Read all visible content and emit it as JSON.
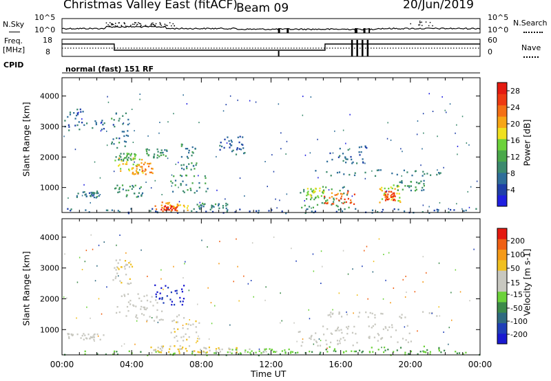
{
  "header": {
    "title": "Christmas Valley East (fitACF)",
    "beam": "Beam 09",
    "date": "20/Jun/2019"
  },
  "top_panels": {
    "nsky_label": "N.Sky",
    "nsky_ticks": [
      "10^5",
      "10^0"
    ],
    "nsearch_label": "N.Search",
    "nsearch_ticks": [
      "10^5",
      "10^0"
    ],
    "freq_label_1": "Freq.",
    "freq_label_2": "[MHz]",
    "freq_ticks": [
      "18",
      "8"
    ],
    "nave_label": "Nave",
    "nave_ticks": [
      "60",
      "0"
    ],
    "cpid_label": "CPID",
    "cpid_value": "normal (fast) 151 RF"
  },
  "colors": {
    "power_scale": [
      "#1f1fe0",
      "#1f3fa8",
      "#2f6e9a",
      "#3c8a6e",
      "#4aa84a",
      "#6cd23a",
      "#f0e020",
      "#f7a616",
      "#f47015",
      "#ee3a12",
      "#e41a10"
    ],
    "velocity_scale": [
      "#1a1ad0",
      "#1f3fb8",
      "#2f6a80",
      "#3c8a4a",
      "#6cd23a",
      "#c8c8c0",
      "#c8c8c0",
      "#f0c020",
      "#f59a18",
      "#f06014",
      "#e41a10"
    ],
    "ground_scatter": "#c8c8c0"
  },
  "chart_data": [
    {
      "type": "heatmap",
      "name": "power",
      "ylabel": "Slant Range [km]",
      "xlabel": "Time UT",
      "x_ticks": [
        "00:00",
        "04:00",
        "08:00",
        "12:00",
        "16:00",
        "20:00",
        "00:00"
      ],
      "y_ticks": [
        "1000",
        "2000",
        "3000",
        "4000"
      ],
      "xlim": [
        0,
        24
      ],
      "ylim": [
        180,
        4600
      ],
      "colorbar_label": "Power [dB]",
      "colorbar_ticks": [
        "4",
        "8",
        "12",
        "16",
        "20",
        "24",
        "28"
      ],
      "colorbar_range": [
        0,
        30
      ],
      "regions": [
        {
          "t0": 0.0,
          "t1": 24.0,
          "r0": 180,
          "r1": 330,
          "v": 6
        },
        {
          "t0": 3.2,
          "t1": 4.8,
          "r0": 1500,
          "r1": 2000,
          "v": 18
        },
        {
          "t0": 4.0,
          "t1": 5.3,
          "r0": 1450,
          "r1": 1850,
          "v": 22
        },
        {
          "t0": 3.0,
          "t1": 4.2,
          "r0": 1900,
          "r1": 2150,
          "v": 12
        },
        {
          "t0": 5.3,
          "t1": 7.3,
          "r0": 250,
          "r1": 550,
          "v": 20
        },
        {
          "t0": 5.6,
          "t1": 6.6,
          "r0": 280,
          "r1": 420,
          "v": 27
        },
        {
          "t0": 6.2,
          "t1": 8.4,
          "r0": 850,
          "r1": 1450,
          "v": 10
        },
        {
          "t0": 6.8,
          "t1": 7.7,
          "r0": 1600,
          "r1": 2500,
          "v": 9
        },
        {
          "t0": 3.0,
          "t1": 4.6,
          "r0": 700,
          "r1": 1100,
          "v": 10
        },
        {
          "t0": 0.8,
          "t1": 2.1,
          "r0": 680,
          "r1": 900,
          "v": 8
        },
        {
          "t0": 0.1,
          "t1": 2.5,
          "r0": 2900,
          "r1": 3600,
          "v": 7
        },
        {
          "t0": 2.8,
          "t1": 3.8,
          "r0": 2300,
          "r1": 3500,
          "v": 8
        },
        {
          "t0": 4.8,
          "t1": 6.0,
          "r0": 2000,
          "r1": 2300,
          "v": 10
        },
        {
          "t0": 7.5,
          "t1": 9.5,
          "r0": 300,
          "r1": 520,
          "v": 9
        },
        {
          "t0": 13.6,
          "t1": 16.6,
          "r0": 350,
          "r1": 1050,
          "v": 11
        },
        {
          "t0": 15.0,
          "t1": 16.8,
          "r0": 450,
          "r1": 900,
          "v": 24
        },
        {
          "t0": 14.0,
          "t1": 15.0,
          "r0": 700,
          "r1": 1000,
          "v": 16
        },
        {
          "t0": 18.2,
          "t1": 19.4,
          "r0": 500,
          "r1": 1100,
          "v": 18
        },
        {
          "t0": 18.5,
          "t1": 19.1,
          "r0": 600,
          "r1": 900,
          "v": 25
        },
        {
          "t0": 19.0,
          "t1": 20.8,
          "r0": 900,
          "r1": 1250,
          "v": 10
        },
        {
          "t0": 14.5,
          "t1": 21.8,
          "r0": 1400,
          "r1": 1600,
          "v": 8
        },
        {
          "t0": 15.0,
          "t1": 17.5,
          "r0": 1800,
          "r1": 2400,
          "v": 6
        },
        {
          "t0": 9.0,
          "t1": 10.5,
          "r0": 2100,
          "r1": 2700,
          "v": 6
        }
      ]
    },
    {
      "type": "heatmap",
      "name": "velocity",
      "ylabel": "Slant Range [km]",
      "xlabel": "Time UT",
      "x_ticks": [
        "00:00",
        "04:00",
        "08:00",
        "12:00",
        "16:00",
        "20:00",
        "00:00"
      ],
      "y_ticks": [
        "1000",
        "2000",
        "3000",
        "4000"
      ],
      "xlim": [
        0,
        24
      ],
      "ylim": [
        180,
        4600
      ],
      "colorbar_label": "Velocity [m s-1]",
      "colorbar_ticks": [
        "200",
        "100",
        "50",
        "15",
        "-15",
        "-50",
        "-100",
        "-200"
      ],
      "colorbar_range": [
        -250,
        250
      ],
      "regions": [
        {
          "t0": 0.0,
          "t1": 24.0,
          "r0": 180,
          "r1": 330,
          "v": -60,
          "g": false
        },
        {
          "t0": 5.0,
          "t1": 7.5,
          "r0": 250,
          "r1": 500,
          "v": 70,
          "g": false
        },
        {
          "t0": 7.5,
          "t1": 10.0,
          "r0": 280,
          "r1": 450,
          "v": 60,
          "g": false
        },
        {
          "t0": 9.5,
          "t1": 13.5,
          "r0": 250,
          "r1": 400,
          "v": -40,
          "g": false
        },
        {
          "t0": 3.0,
          "t1": 5.8,
          "r0": 1300,
          "r1": 2200,
          "v": 0,
          "g": true
        },
        {
          "t0": 5.3,
          "t1": 7.0,
          "r0": 1800,
          "r1": 2500,
          "v": -200,
          "g": false
        },
        {
          "t0": 6.2,
          "t1": 8.0,
          "r0": 600,
          "r1": 1500,
          "v": 60,
          "g": false
        },
        {
          "t0": 2.9,
          "t1": 4.0,
          "r0": 2500,
          "r1": 3300,
          "v": 60,
          "g": false
        },
        {
          "t0": 13.5,
          "t1": 17.0,
          "r0": 500,
          "r1": 1150,
          "v": 0,
          "g": true
        },
        {
          "t0": 17.5,
          "t1": 20.0,
          "r0": 600,
          "r1": 1200,
          "v": 0,
          "g": true
        },
        {
          "t0": 14.5,
          "t1": 21.5,
          "r0": 1400,
          "r1": 1600,
          "v": 0,
          "g": true
        },
        {
          "t0": 0.2,
          "t1": 2.4,
          "r0": 700,
          "r1": 900,
          "v": 0,
          "g": true
        },
        {
          "t0": 15.0,
          "t1": 22.0,
          "r0": 280,
          "r1": 480,
          "v": -60,
          "g": false
        }
      ]
    }
  ]
}
